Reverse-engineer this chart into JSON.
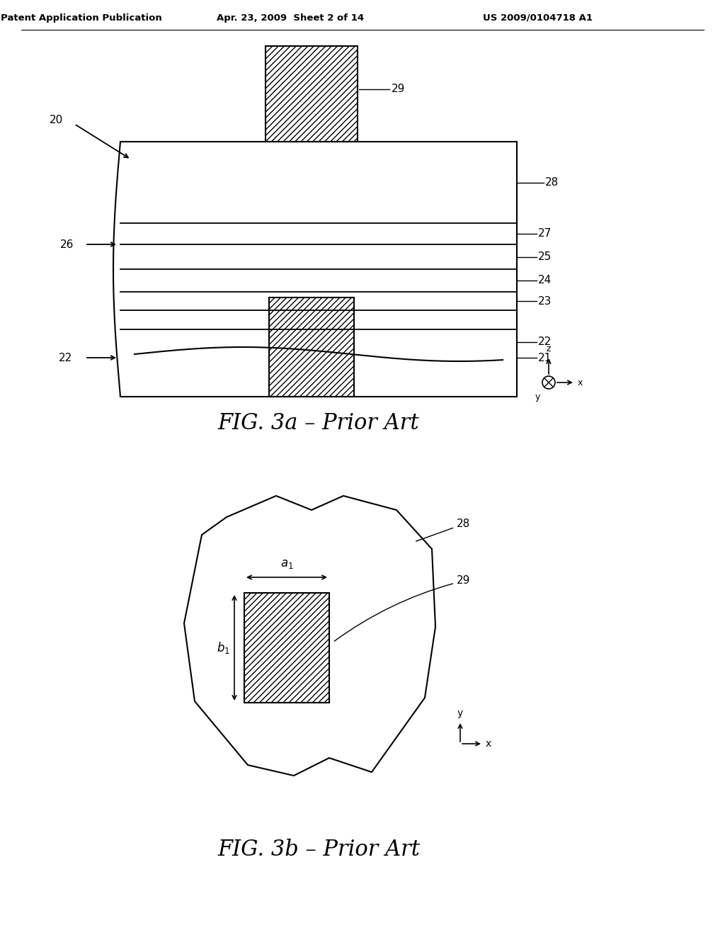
{
  "header_left": "Patent Application Publication",
  "header_mid": "Apr. 23, 2009  Sheet 2 of 14",
  "header_right": "US 2009/0104718 A1",
  "fig3a_caption": "FIG. 3a – Prior Art",
  "fig3b_caption": "FIG. 3b – Prior Art",
  "bg_color": "#ffffff",
  "line_color": "#000000"
}
